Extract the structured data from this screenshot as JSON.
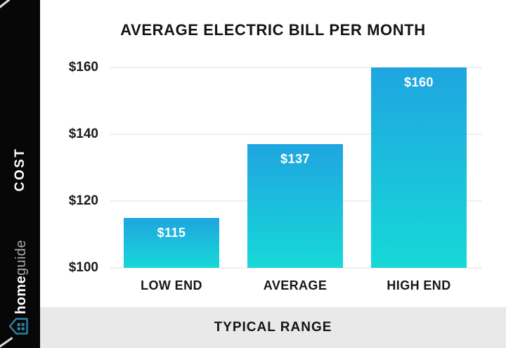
{
  "sidebar": {
    "cost_label": "COST",
    "brand_bold": "home",
    "brand_light": "guide"
  },
  "footer": {
    "label": "TYPICAL RANGE"
  },
  "chart_data": {
    "type": "bar",
    "title": "AVERAGE ELECTRIC BILL PER MONTH",
    "categories": [
      "LOW END",
      "AVERAGE",
      "HIGH END"
    ],
    "values": [
      115,
      137,
      160
    ],
    "bar_labels": [
      "$115",
      "$137",
      "$160"
    ],
    "xlabel": "TYPICAL RANGE",
    "ylabel": "COST",
    "ylim": [
      100,
      160
    ],
    "yticks": [
      100,
      120,
      140,
      160
    ],
    "ytick_labels": [
      "$100",
      "$120",
      "$140",
      "$160"
    ],
    "grid": true,
    "legend": false,
    "colors": {
      "bar_gradient_top": "#1fa5e0",
      "bar_gradient_bottom": "#17d8d7",
      "grid_color": "#efefef",
      "sidebar_bg": "#070707",
      "footer_bg": "#e9e9e9",
      "logo_teal": "#2b84a6",
      "title_text": "#141414",
      "bar_label_text": "#ffffff"
    }
  }
}
